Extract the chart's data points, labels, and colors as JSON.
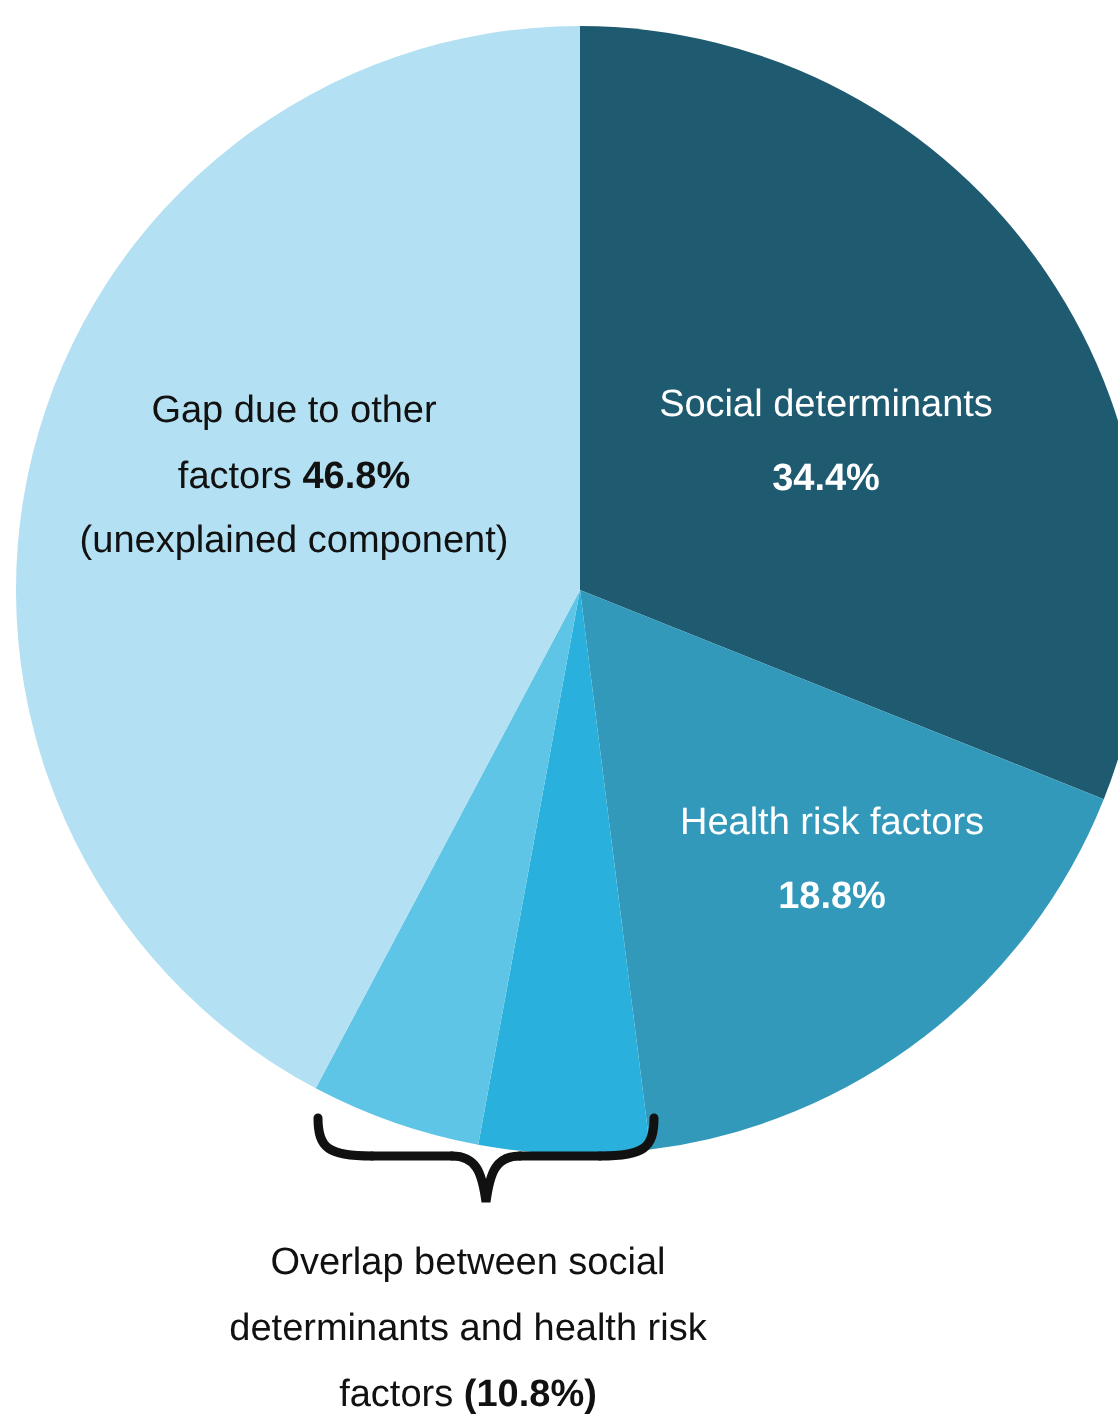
{
  "chart_data": {
    "type": "pie",
    "categories": [
      "Social determinants",
      "Health risk factors",
      null,
      "Overlap between social determinants and health risk factors",
      "Gap due to other factors"
    ],
    "values": [
      34.4,
      18.8,
      5.4,
      5.4,
      46.8
    ],
    "colors": [
      "#1e5a70",
      "#3399bb",
      "#29b0dc",
      "#5fc5e6",
      "#b3e0f2"
    ],
    "value_labels": [
      "34.4%",
      "18.8%",
      null,
      null,
      "46.8%"
    ],
    "annotations": [
      "(unexplained component)",
      "(10.8%)"
    ]
  }
}
